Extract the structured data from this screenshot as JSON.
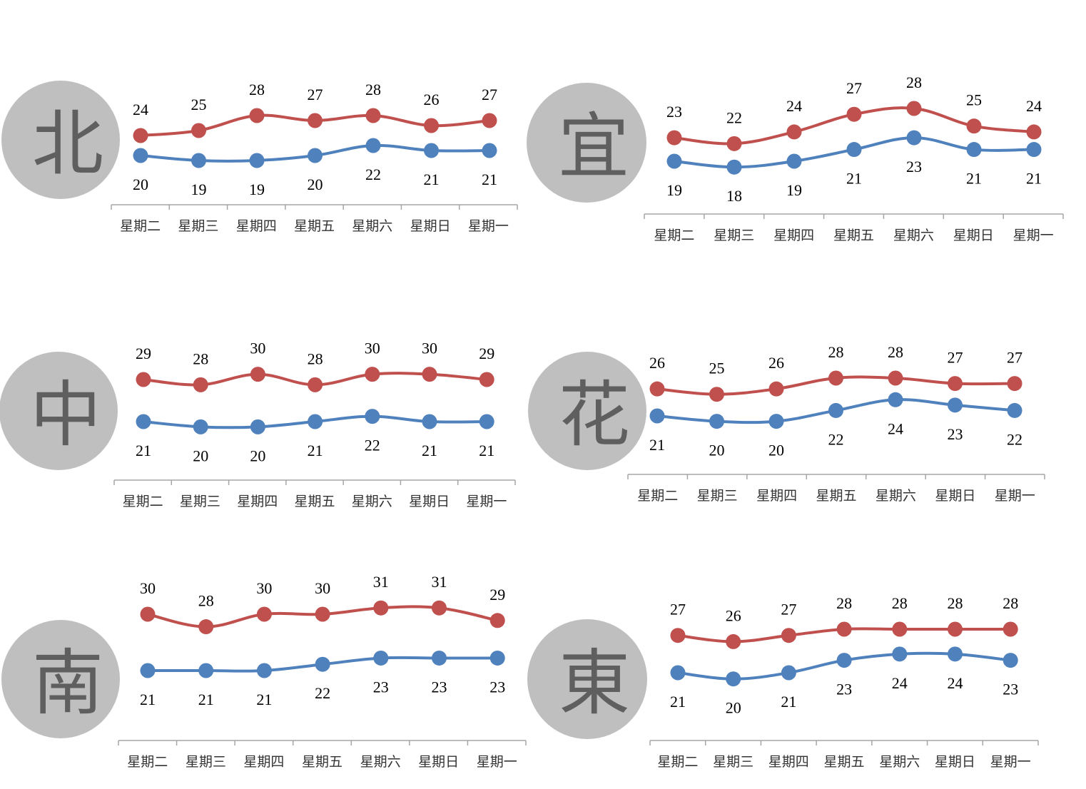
{
  "colors": {
    "high": "#c0504d",
    "low": "#4f81bd",
    "circle": "#bfbfbf",
    "axis": "#a6a6a6",
    "glyph": "#5f5f5f"
  },
  "chart_data": [
    {
      "type": "line",
      "city": "北",
      "categories": [
        "星期二",
        "星期三",
        "星期四",
        "星期五",
        "星期六",
        "星期日",
        "星期一"
      ],
      "series": [
        {
          "values": [
            24,
            25,
            28,
            27,
            28,
            26,
            27
          ],
          "color": "#c0504d"
        },
        {
          "values": [
            20,
            19,
            19,
            20,
            22,
            21,
            21
          ],
          "color": "#4f81bd"
        }
      ]
    },
    {
      "type": "line",
      "city": "宜",
      "categories": [
        "星期二",
        "星期三",
        "星期四",
        "星期五",
        "星期六",
        "星期日",
        "星期一"
      ],
      "series": [
        {
          "values": [
            23,
            22,
            24,
            27,
            28,
            25,
            24
          ],
          "color": "#c0504d"
        },
        {
          "values": [
            19,
            18,
            19,
            21,
            23,
            21,
            21
          ],
          "color": "#4f81bd"
        }
      ]
    },
    {
      "type": "line",
      "city": "中",
      "categories": [
        "星期二",
        "星期三",
        "星期四",
        "星期五",
        "星期六",
        "星期日",
        "星期一"
      ],
      "series": [
        {
          "values": [
            29,
            28,
            30,
            28,
            30,
            30,
            29
          ],
          "color": "#c0504d"
        },
        {
          "values": [
            21,
            20,
            20,
            21,
            22,
            21,
            21
          ],
          "color": "#4f81bd"
        }
      ]
    },
    {
      "type": "line",
      "city": "花",
      "categories": [
        "星期二",
        "星期三",
        "星期四",
        "星期五",
        "星期六",
        "星期日",
        "星期一"
      ],
      "series": [
        {
          "values": [
            26,
            25,
            26,
            28,
            28,
            27,
            27
          ],
          "color": "#c0504d"
        },
        {
          "values": [
            21,
            20,
            20,
            22,
            24,
            23,
            22
          ],
          "color": "#4f81bd"
        }
      ]
    },
    {
      "type": "line",
      "city": "南",
      "categories": [
        "星期二",
        "星期三",
        "星期四",
        "星期五",
        "星期六",
        "星期日",
        "星期一"
      ],
      "series": [
        {
          "values": [
            30,
            28,
            30,
            30,
            31,
            31,
            29
          ],
          "color": "#c0504d"
        },
        {
          "values": [
            21,
            21,
            21,
            22,
            23,
            23,
            23
          ],
          "color": "#4f81bd"
        }
      ]
    },
    {
      "type": "line",
      "city": "東",
      "categories": [
        "星期二",
        "星期三",
        "星期四",
        "星期五",
        "星期六",
        "星期日",
        "星期一"
      ],
      "series": [
        {
          "values": [
            27,
            26,
            27,
            28,
            28,
            28,
            28
          ],
          "color": "#c0504d"
        },
        {
          "values": [
            21,
            20,
            21,
            23,
            24,
            24,
            23
          ],
          "color": "#4f81bd"
        }
      ]
    }
  ]
}
